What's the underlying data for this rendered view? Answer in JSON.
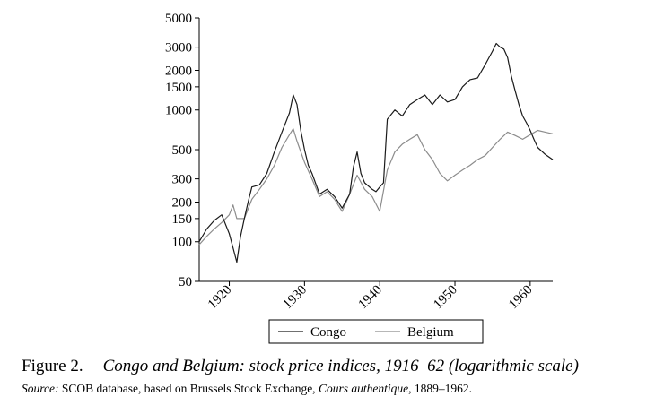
{
  "figure": {
    "number": "Figure 2.",
    "title": "Congo and Belgium: stock price indices, 1916–62 (logarithmic scale)",
    "source_label": "Source:",
    "source_text_a": "SCOB database, based on Brussels Stock Exchange, ",
    "source_italic": "Cours authentique",
    "source_text_b": ", 1889–1962."
  },
  "colors": {
    "congo": "#1a1a1a",
    "belgium": "#8c8c8c",
    "axis": "#000000"
  },
  "chart_data": {
    "type": "line",
    "title": "Congo and Belgium: stock price indices, 1916–62 (logarithmic scale)",
    "xlabel": "",
    "ylabel": "",
    "yscale": "log",
    "xlim": [
      1916,
      1963
    ],
    "ylim": [
      50,
      5000
    ],
    "x_ticks": [
      1920,
      1930,
      1940,
      1950,
      1960
    ],
    "x_tick_labels": [
      "1920",
      "1930",
      "1940",
      "1950",
      "1960"
    ],
    "y_ticks": [
      50,
      100,
      150,
      200,
      300,
      500,
      1000,
      1500,
      2000,
      3000,
      5000
    ],
    "y_tick_labels": [
      "50",
      "100",
      "150",
      "200",
      "300",
      "500",
      "1000",
      "1500",
      "2000",
      "3000",
      "5000"
    ],
    "legend_position": "bottom",
    "series": [
      {
        "name": "Congo",
        "x": [
          1916,
          1917,
          1918,
          1919,
          1920,
          1920.5,
          1921,
          1921.5,
          1922,
          1922.5,
          1923,
          1924,
          1925,
          1926,
          1927,
          1928,
          1928.5,
          1929,
          1929.5,
          1930,
          1930.5,
          1931,
          1932,
          1933,
          1934,
          1935,
          1936,
          1936.5,
          1937,
          1937.5,
          1938,
          1939,
          1939.5,
          1940,
          1940.5,
          1941,
          1942,
          1943,
          1944,
          1945,
          1946,
          1947,
          1948,
          1949,
          1950,
          1951,
          1952,
          1953,
          1954,
          1955,
          1955.5,
          1956,
          1956.5,
          1957,
          1957.5,
          1958,
          1958.5,
          1959,
          1959.5,
          1960,
          1960.5,
          1961,
          1962,
          1963
        ],
        "values": [
          100,
          125,
          145,
          160,
          115,
          90,
          70,
          110,
          150,
          200,
          260,
          270,
          330,
          480,
          680,
          950,
          1300,
          1100,
          700,
          500,
          380,
          330,
          230,
          250,
          220,
          180,
          230,
          370,
          480,
          330,
          280,
          250,
          240,
          260,
          280,
          850,
          1000,
          900,
          1100,
          1200,
          1300,
          1100,
          1300,
          1150,
          1200,
          1500,
          1700,
          1750,
          2200,
          2800,
          3200,
          3000,
          2900,
          2500,
          1800,
          1400,
          1100,
          900,
          800,
          700,
          600,
          520,
          460,
          420
        ]
      },
      {
        "name": "Belgium",
        "x": [
          1916,
          1917,
          1918,
          1919,
          1920,
          1920.5,
          1921,
          1922,
          1923,
          1924,
          1925,
          1926,
          1927,
          1928,
          1928.5,
          1929,
          1930,
          1931,
          1932,
          1933,
          1934,
          1935,
          1936,
          1937,
          1938,
          1939,
          1940,
          1941,
          1942,
          1943,
          1944,
          1945,
          1946,
          1947,
          1948,
          1949,
          1950,
          1951,
          1952,
          1953,
          1954,
          1955,
          1956,
          1957,
          1958,
          1959,
          1960,
          1961,
          1962,
          1963
        ],
        "values": [
          95,
          110,
          125,
          140,
          160,
          190,
          150,
          150,
          210,
          250,
          300,
          380,
          520,
          650,
          720,
          580,
          400,
          300,
          220,
          240,
          210,
          170,
          230,
          320,
          250,
          220,
          170,
          350,
          480,
          550,
          600,
          650,
          500,
          420,
          330,
          290,
          320,
          350,
          380,
          420,
          450,
          520,
          600,
          680,
          640,
          600,
          650,
          700,
          680,
          660
        ]
      }
    ]
  }
}
